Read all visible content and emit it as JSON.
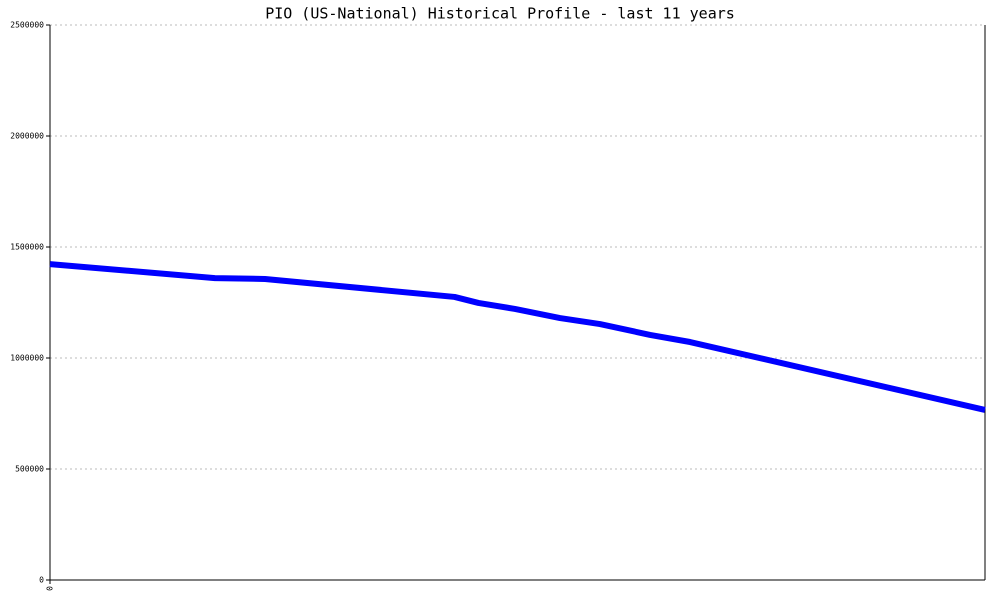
{
  "chart_data": {
    "type": "line",
    "title": "PIO (US-National) Historical Profile - last 11 years",
    "x": [
      0,
      1.94,
      2.53,
      4.76,
      5.04,
      5.47,
      6.0,
      6.47,
      7.06,
      7.53,
      11
    ],
    "series": [
      {
        "color": "#0000ff",
        "values": [
          1423000,
          1360000,
          1356000,
          1275000,
          1248000,
          1221000,
          1180000,
          1153000,
          1104000,
          1072000,
          766000
        ]
      }
    ],
    "xlim": [
      0,
      11
    ],
    "xticks": [
      0
    ],
    "ylim": [
      0,
      2500000
    ],
    "yticks": [
      0,
      500000,
      1000000,
      1500000,
      2000000,
      2500000
    ],
    "grid": true
  }
}
